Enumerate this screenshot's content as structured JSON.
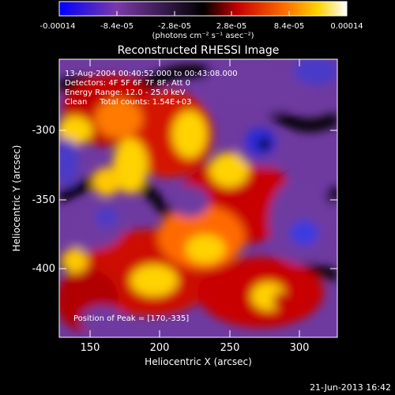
{
  "colorbar": {
    "tick_labels": [
      "-0.00014",
      "-8.4e-05",
      "-2.8e-05",
      "2.8e-05",
      "8.4e-05",
      "0.00014"
    ],
    "units_label": "(photons cm⁻² s⁻¹ asec⁻²)",
    "colors": [
      "#0000ff",
      "#7a3aa8",
      "#000000",
      "#c40000",
      "#ff6a00",
      "#ffd200",
      "#ffffff"
    ]
  },
  "plot": {
    "title": "Reconstructed RHESSI Image",
    "xlabel": "Heliocentric X (arcsec)",
    "ylabel": "Heliocentric Y (arcsec)",
    "x_ticks": [
      "150",
      "200",
      "250",
      "300"
    ],
    "y_ticks": [
      "-300",
      "-350",
      "-400"
    ],
    "info_lines": [
      "13-Aug-2004 00:40:52.000 to 00:43:08.000",
      "Detectors: 4F 5F 6F 7F 8F, Att 0",
      "Energy Range: 12.0 - 25.0 keV",
      "Clean     Total counts: 1.54E+03"
    ],
    "peak_label": "Position of Peak = [170,-335]"
  },
  "footer": {
    "timestamp": "21-Jun-2013 16:42"
  }
}
